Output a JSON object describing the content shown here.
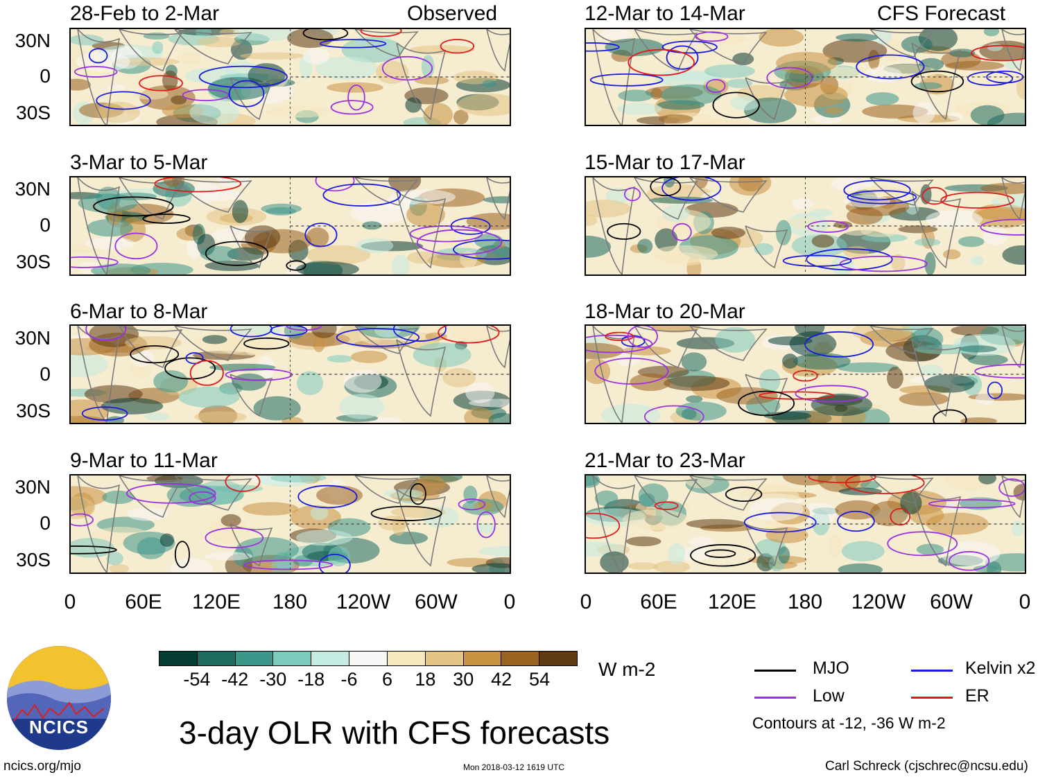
{
  "observed_label": "Observed",
  "forecast_label": "CFS Forecast",
  "panels_left": [
    {
      "title": "28-Feb to 2-Mar"
    },
    {
      "title": "3-Mar to 5-Mar"
    },
    {
      "title": "6-Mar to 8-Mar"
    },
    {
      "title": "9-Mar to 11-Mar"
    }
  ],
  "panels_right": [
    {
      "title": "12-Mar to 14-Mar"
    },
    {
      "title": "15-Mar to 17-Mar"
    },
    {
      "title": "18-Mar to 20-Mar"
    },
    {
      "title": "21-Mar to 23-Mar"
    }
  ],
  "lat_labels": [
    "30N",
    "0",
    "30S"
  ],
  "lon_labels": [
    "0",
    "60E",
    "120E",
    "180",
    "120W",
    "60W",
    "0"
  ],
  "colorbar": {
    "colors": [
      "#053d35",
      "#1c6b60",
      "#3c968a",
      "#7ecbbd",
      "#c4ebe2",
      "#f8f8f6",
      "#f6e8bf",
      "#e3c486",
      "#c99242",
      "#9b6321",
      "#5f3a14"
    ],
    "labels": [
      "-54",
      "-42",
      "-30",
      "-18",
      "-6",
      "6",
      "18",
      "30",
      "42",
      "54"
    ],
    "units": "W m-2"
  },
  "title": "3-day OLR with CFS forecasts",
  "legend": {
    "mjo": "MJO",
    "kelvin": "Kelvin x2",
    "low": "Low",
    "er": "ER",
    "mjo_color": "#000000",
    "kelvin_color": "#1a1adf",
    "low_color": "#9b30e0",
    "er_color": "#e01a1a",
    "contours": "Contours at -12, -36 W m-2"
  },
  "logo_text": "NCICS",
  "footer": {
    "url": "ncics.org/mjo",
    "timestamp": "Mon 2018-03-12 1619 UTC",
    "credit": "Carl Schreck (cjschrec@ncsu.edu)"
  }
}
